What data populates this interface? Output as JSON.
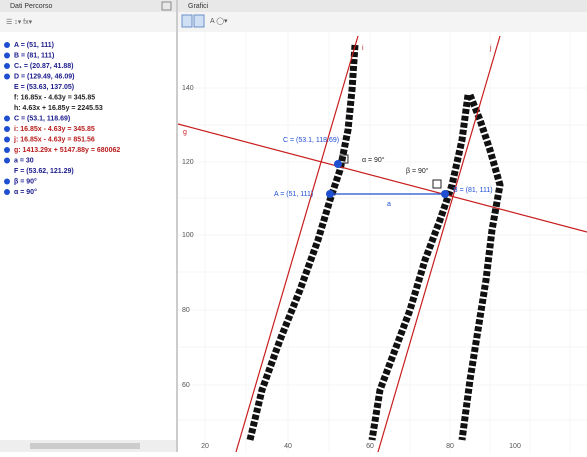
{
  "algebra_panel": {
    "title": "Dati Percorso",
    "items": [
      {
        "text": "A = (51, 111)",
        "color": "#1a1a8c",
        "dot": "#1f4fd1"
      },
      {
        "text": "B = (81, 111)",
        "color": "#1a1a8c",
        "dot": "#1f4fd1"
      },
      {
        "text": "C₁ = (20.87, 41.88)",
        "color": "#1a1a8c",
        "dot": "#1f4fd1"
      },
      {
        "text": "D = (129.49, 46.09)",
        "color": "#1a1a8c",
        "dot": "#1f4fd1"
      },
      {
        "text": "E = (53.63, 137.05)",
        "color": "#1a1a8c"
      },
      {
        "text": "f: 16.85x - 4.63y = 345.85",
        "color": "#222222"
      },
      {
        "text": "h: 4.63x + 16.85y = 2245.53",
        "color": "#222222"
      },
      {
        "text": "C = (53.1, 118.69)",
        "color": "#1a1a8c",
        "dot": "#1f4fd1"
      },
      {
        "text": "i: 16.85x - 4.63y = 345.85",
        "color": "#b81c1c",
        "dot": "#1f4fd1"
      },
      {
        "text": "j: 16.85x - 4.63y = 851.56",
        "color": "#b81c1c",
        "dot": "#1f4fd1"
      },
      {
        "text": "g: 1413.29x + 5147.88y = 680062",
        "color": "#b81c1c",
        "dot": "#1f4fd1"
      },
      {
        "text": "a = 30",
        "color": "#1a1a8c",
        "dot": "#1f4fd1"
      },
      {
        "text": "F = (53.62, 121.29)",
        "color": "#1a1a8c"
      },
      {
        "text": "β = 90°",
        "color": "#1a1a8c",
        "dot": "#1f4fd1"
      },
      {
        "text": "α = 90°",
        "color": "#1a1a8c",
        "dot": "#1f4fd1"
      }
    ]
  },
  "graphics_panel": {
    "title": "Grafici",
    "y_tick_labels": [
      "140",
      "120",
      "100",
      "80",
      "60"
    ],
    "x_tick_labels": [
      "20",
      "40",
      "60",
      "80",
      "100"
    ],
    "labels": {
      "C": "C = (53.1, 118.69)",
      "alpha": "α = 90°",
      "beta": "β = 90°",
      "A": "A = (51, 111)",
      "B": "B = (81, 111)",
      "a": "a",
      "i": "i",
      "j": "j",
      "g": "g"
    }
  }
}
